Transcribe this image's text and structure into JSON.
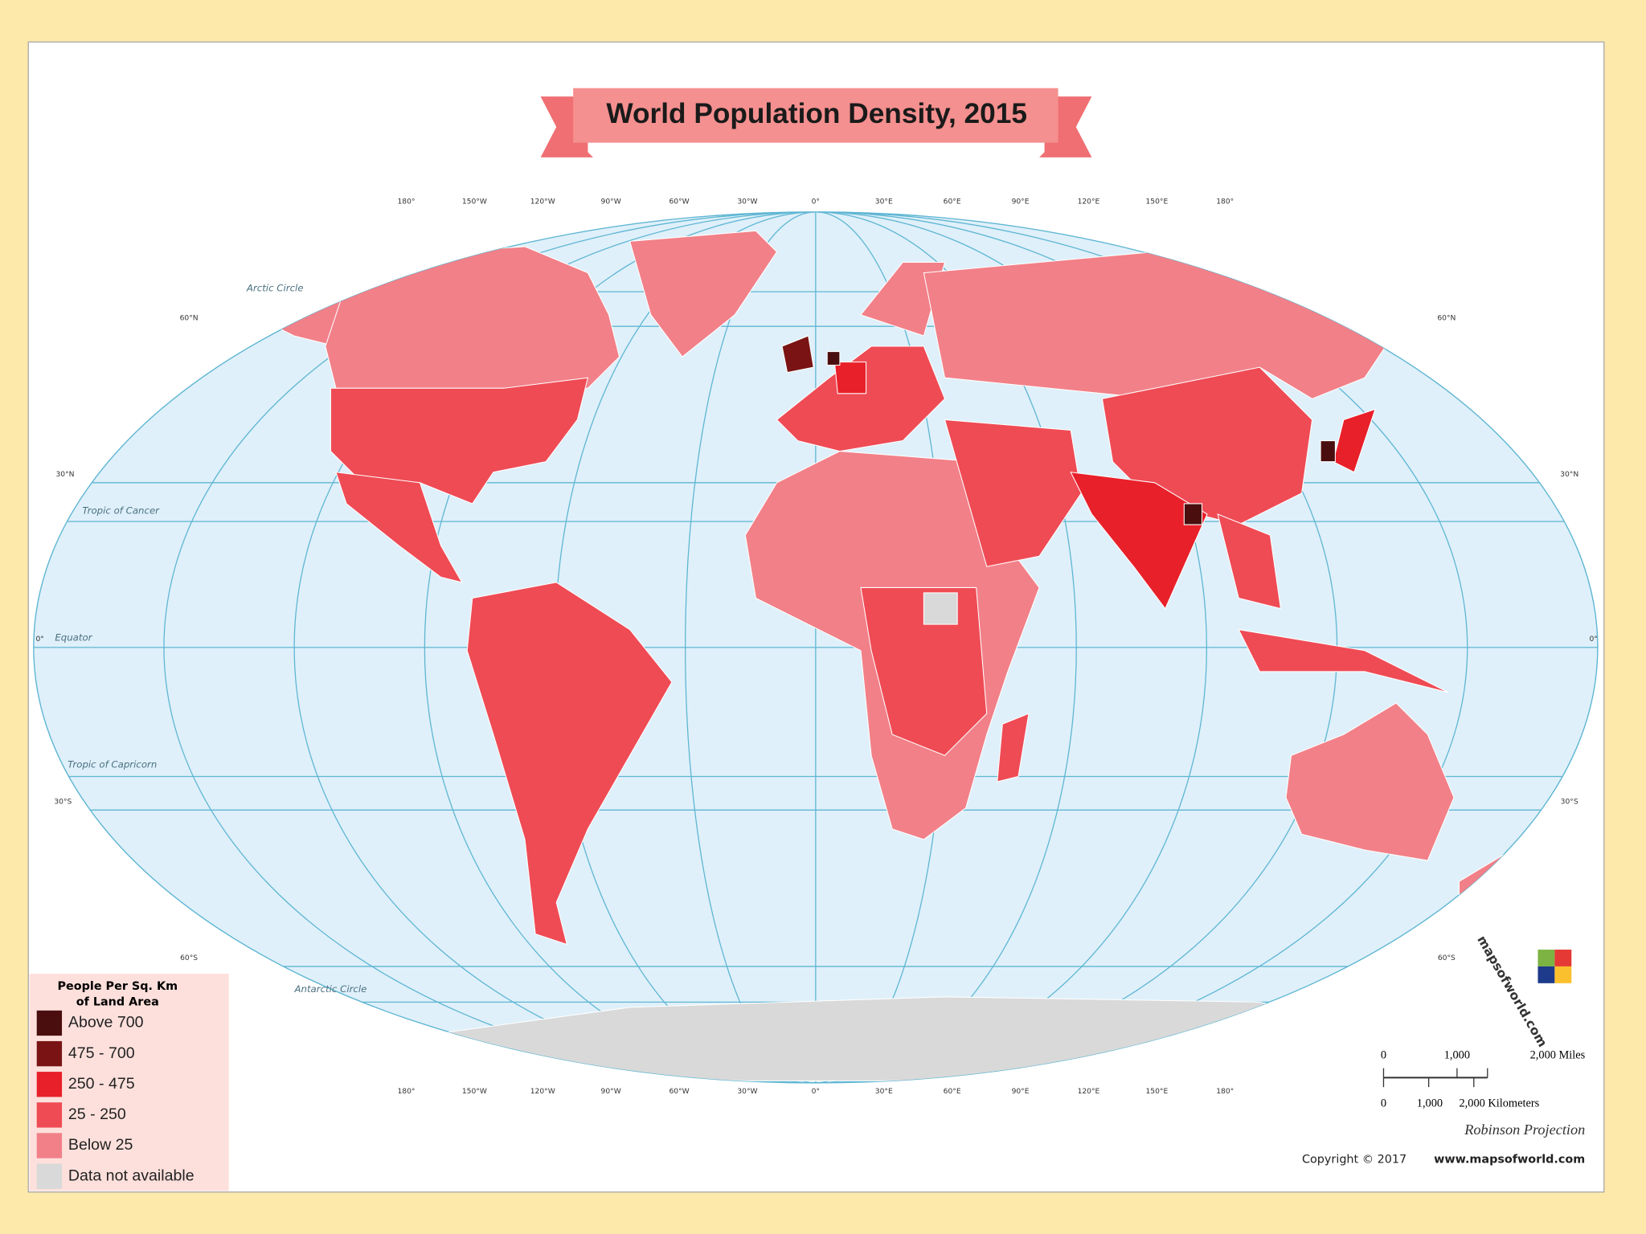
{
  "title": "World Population Density, 2015",
  "longitude_labels": [
    "180°",
    "150°W",
    "120°W",
    "90°W",
    "60°W",
    "30°W",
    "0°",
    "30°E",
    "60°E",
    "90°E",
    "120°E",
    "150°E",
    "180°"
  ],
  "latitude_labels": [
    "60°N",
    "30°N",
    "0°",
    "30°S",
    "60°S"
  ],
  "reference_lines": [
    "Arctic Circle",
    "Tropic of Cancer",
    "Equator",
    "Tropic of Capricorn",
    "Antarctic Circle"
  ],
  "legend": {
    "title_lines": [
      "People Per Sq. Km",
      "of Land Area"
    ],
    "items": [
      {
        "label": "Above 700",
        "color": "#4a0e0e"
      },
      {
        "label": "475 - 700",
        "color": "#7a1414"
      },
      {
        "label": "250 - 475",
        "color": "#e8202a"
      },
      {
        "label": "25 - 250",
        "color": "#ef4b55"
      },
      {
        "label": "Below 25",
        "color": "#f28088"
      },
      {
        "label": "Data not available",
        "color": "#d9d9d9"
      }
    ]
  },
  "scale_bar": {
    "miles": [
      "0",
      "1,000",
      "2,000 Miles"
    ],
    "kilometers": [
      "0",
      "1,000",
      "2,000 Kilometers"
    ]
  },
  "projection": "Robinson Projection",
  "copyright_prefix": "Copyright © 2017",
  "copyright_site": "www.mapsofworld.com",
  "logo": "mapsofworld.com"
}
